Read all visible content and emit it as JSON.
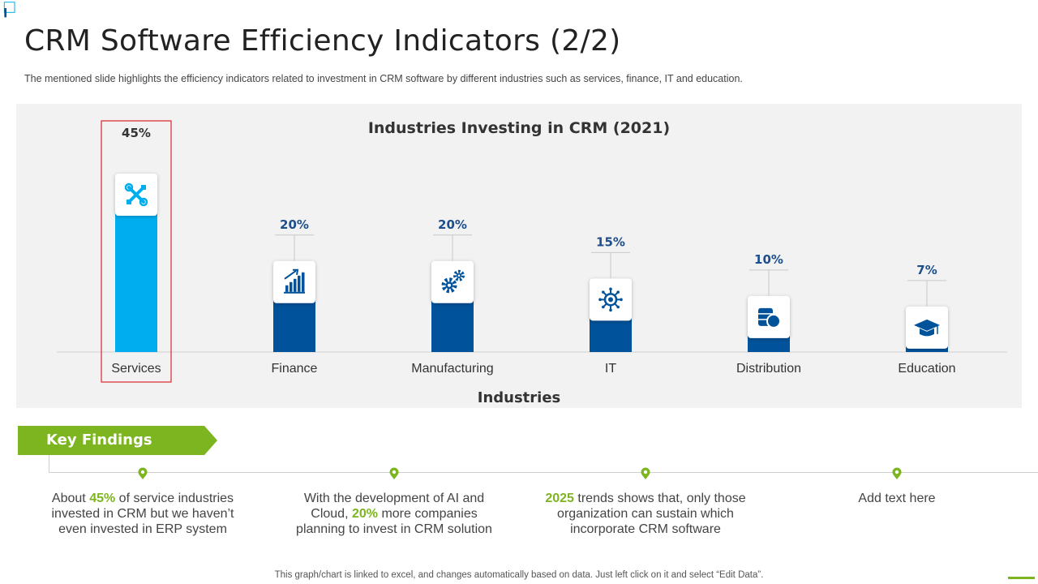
{
  "page": {
    "title": "CRM Software Efficiency Indicators (2/2)",
    "subtitle": "The mentioned slide highlights the efficiency indicators related to investment in CRM software by different industries such as services, finance, IT and education.",
    "footer": "This graph/chart is linked to excel, and changes automatically based on data. Just left click on it and select “Edit Data”."
  },
  "chart_data": {
    "type": "bar",
    "title": "Industries Investing in CRM (2021)",
    "xlabel": "Industries",
    "ylabel": "",
    "categories": [
      "Services",
      "Finance",
      "Manufacturing",
      "IT",
      "Distribution",
      "Education"
    ],
    "values": [
      45,
      20,
      20,
      15,
      10,
      7
    ],
    "value_labels": [
      "45%",
      "20%",
      "20%",
      "15%",
      "10%",
      "7%"
    ],
    "icons": [
      "tools-icon",
      "bar-growth-icon",
      "gears-icon",
      "circuit-icon",
      "database-icon",
      "graduation-cap-icon"
    ],
    "highlighted_category": "Services",
    "ylim": [
      0,
      45
    ],
    "colors": {
      "highlight": "#00aeef",
      "default": "#00529b",
      "label": "#1d4f8c",
      "highlight_box": "#d9262c"
    },
    "grid": false,
    "legend": "none"
  },
  "findings": {
    "header": "Key Findings",
    "items": [
      {
        "pre": "About ",
        "highlight": "45%",
        "post": " of service industries invested in CRM but we haven’t even invested in ERP system"
      },
      {
        "pre": "With the development of AI and Cloud, ",
        "highlight": "20%",
        "post": " more companies planning to invest in CRM solution"
      },
      {
        "pre": "",
        "highlight": "2025",
        "post": " trends shows that, only those organization can sustain which incorporate CRM software"
      },
      {
        "pre": "Add text here",
        "highlight": "",
        "post": ""
      }
    ],
    "colors": {
      "accent": "#7cb51f"
    }
  }
}
